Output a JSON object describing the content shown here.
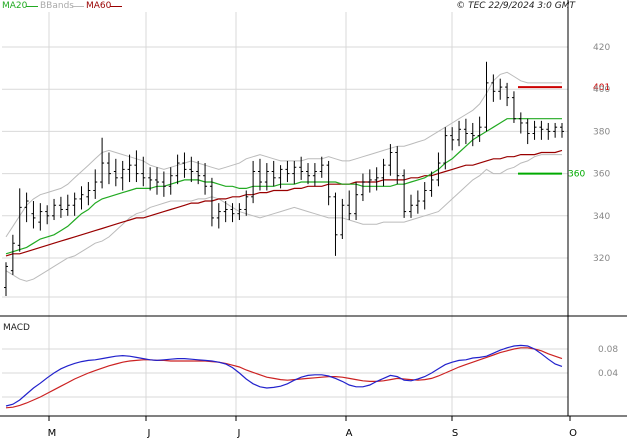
{
  "header": {
    "credit": "© TEC 22/9/2024 3:0 GMT"
  },
  "chart_data": [
    {
      "type": "line",
      "panel": "price",
      "legend": [
        {
          "name": "MA20",
          "color": "#22aa22"
        },
        {
          "name": "BBands",
          "color": "#bbbbbb"
        },
        {
          "name": "MA60",
          "color": "#990000"
        }
      ],
      "y_ticks": [
        320,
        340,
        360,
        380,
        400,
        420
      ],
      "ylim": [
        300,
        428
      ],
      "month_labels": [
        "M",
        "J",
        "J",
        "A",
        "S",
        "O"
      ],
      "levels": [
        {
          "value": 401,
          "label": "401",
          "color": "#cc0000"
        },
        {
          "value": 360,
          "label": "360",
          "color": "#00aa00"
        }
      ],
      "colors": {
        "ohlc": "#000000",
        "ma20": "#22aa22",
        "ma60": "#990000",
        "bbands": "#bbbbbb",
        "grid": "#d9d9d9"
      },
      "ohlc": [
        [
          306,
          318,
          302,
          316
        ],
        [
          314,
          331,
          312,
          327
        ],
        [
          326,
          353,
          323,
          344
        ],
        [
          344,
          351,
          337,
          347
        ],
        [
          341,
          347,
          334,
          339
        ],
        [
          337,
          346,
          333,
          342
        ],
        [
          342,
          345,
          336,
          340
        ],
        [
          340,
          348,
          338,
          345
        ],
        [
          345,
          349,
          339,
          343
        ],
        [
          343,
          350,
          340,
          345
        ],
        [
          345,
          351,
          340,
          348
        ],
        [
          348,
          354,
          343,
          350
        ],
        [
          349,
          356,
          345,
          352
        ],
        [
          352,
          362,
          348,
          356
        ],
        [
          356,
          377,
          353,
          365
        ],
        [
          365,
          370,
          355,
          360
        ],
        [
          361,
          367,
          354,
          358
        ],
        [
          358,
          366,
          352,
          362
        ],
        [
          362,
          369,
          356,
          364
        ],
        [
          364,
          371,
          356,
          360
        ],
        [
          360,
          368,
          354,
          358
        ],
        [
          358,
          363,
          352,
          357
        ],
        [
          357,
          363,
          350,
          356
        ],
        [
          356,
          361,
          349,
          354
        ],
        [
          354,
          363,
          350,
          359
        ],
        [
          359,
          369,
          355,
          365
        ],
        [
          365,
          370,
          358,
          362
        ],
        [
          362,
          368,
          356,
          361
        ],
        [
          361,
          366,
          355,
          359
        ],
        [
          359,
          365,
          350,
          354
        ],
        [
          354,
          358,
          335,
          339
        ],
        [
          339,
          346,
          334,
          342
        ],
        [
          342,
          347,
          337,
          343
        ],
        [
          343,
          346,
          337,
          341
        ],
        [
          341,
          346,
          338,
          343
        ],
        [
          343,
          352,
          340,
          349
        ],
        [
          349,
          366,
          346,
          361
        ],
        [
          361,
          367,
          352,
          356
        ],
        [
          356,
          365,
          352,
          361
        ],
        [
          361,
          366,
          354,
          358
        ],
        [
          358,
          364,
          353,
          362
        ],
        [
          362,
          366,
          356,
          360
        ],
        [
          360,
          366,
          355,
          363
        ],
        [
          363,
          368,
          357,
          361
        ],
        [
          361,
          365,
          355,
          359
        ],
        [
          359,
          365,
          354,
          361
        ],
        [
          361,
          368,
          358,
          364
        ],
        [
          364,
          366,
          345,
          349
        ],
        [
          349,
          351,
          321,
          331
        ],
        [
          331,
          348,
          329,
          345
        ],
        [
          345,
          352,
          338,
          341
        ],
        [
          341,
          356,
          338,
          350
        ],
        [
          350,
          360,
          347,
          356
        ],
        [
          356,
          362,
          351,
          357
        ],
        [
          357,
          363,
          352,
          358
        ],
        [
          358,
          367,
          354,
          364
        ],
        [
          364,
          374,
          359,
          370
        ],
        [
          370,
          373,
          355,
          359
        ],
        [
          359,
          362,
          339,
          342
        ],
        [
          342,
          350,
          339,
          345
        ],
        [
          345,
          352,
          341,
          347
        ],
        [
          347,
          356,
          343,
          352
        ],
        [
          352,
          361,
          349,
          357
        ],
        [
          357,
          370,
          354,
          365
        ],
        [
          365,
          382,
          362,
          378
        ],
        [
          378,
          382,
          371,
          376
        ],
        [
          376,
          385,
          373,
          381
        ],
        [
          381,
          386,
          374,
          379
        ],
        [
          379,
          384,
          373,
          378
        ],
        [
          378,
          387,
          375,
          382
        ],
        [
          382,
          413,
          380,
          403
        ],
        [
          403,
          407,
          394,
          399
        ],
        [
          399,
          405,
          395,
          401
        ],
        [
          401,
          403,
          392,
          396
        ],
        [
          396,
          399,
          384,
          386
        ],
        [
          386,
          389,
          379,
          384
        ],
        [
          384,
          386,
          374,
          379
        ],
        [
          379,
          385,
          376,
          382
        ],
        [
          382,
          385,
          376,
          381
        ],
        [
          381,
          384,
          376,
          380
        ],
        [
          380,
          384,
          377,
          382
        ],
        [
          382,
          384,
          377,
          380
        ]
      ],
      "ma20": [
        322,
        323,
        324,
        325,
        327,
        329,
        330,
        331,
        333,
        335,
        338,
        341,
        343,
        346,
        348,
        349,
        350,
        351,
        352,
        353,
        353,
        353,
        354,
        354,
        355,
        356,
        357,
        357,
        357,
        356,
        356,
        355,
        354,
        354,
        353,
        353,
        354,
        354,
        354,
        354,
        355,
        355,
        355,
        356,
        356,
        356,
        356,
        356,
        356,
        355,
        355,
        355,
        354,
        354,
        354,
        354,
        354,
        355,
        355,
        356,
        357,
        358,
        360,
        362,
        365,
        367,
        370,
        373,
        376,
        378,
        380,
        382,
        384,
        386,
        386,
        386,
        386,
        386,
        386,
        386,
        386,
        386
      ],
      "ma60": [
        321,
        322,
        322,
        323,
        324,
        325,
        326,
        327,
        328,
        329,
        330,
        331,
        332,
        333,
        334,
        335,
        336,
        337,
        338,
        339,
        339,
        340,
        341,
        342,
        343,
        344,
        345,
        346,
        346,
        347,
        347,
        348,
        348,
        349,
        349,
        350,
        350,
        351,
        351,
        352,
        352,
        352,
        353,
        353,
        354,
        354,
        354,
        355,
        355,
        355,
        355,
        356,
        356,
        356,
        356,
        357,
        357,
        357,
        357,
        358,
        358,
        359,
        359,
        360,
        361,
        362,
        363,
        364,
        364,
        365,
        366,
        367,
        367,
        368,
        368,
        369,
        369,
        369,
        370,
        370,
        370,
        371
      ],
      "bb_upper": [
        330,
        335,
        340,
        345,
        348,
        350,
        351,
        352,
        353,
        355,
        358,
        361,
        364,
        367,
        370,
        371,
        370,
        369,
        368,
        367,
        366,
        364,
        363,
        362,
        363,
        364,
        365,
        366,
        365,
        364,
        363,
        362,
        363,
        364,
        365,
        367,
        368,
        369,
        368,
        367,
        366,
        366,
        366,
        366,
        367,
        367,
        367,
        368,
        367,
        366,
        366,
        367,
        368,
        369,
        370,
        371,
        372,
        373,
        373,
        374,
        375,
        376,
        378,
        380,
        382,
        384,
        386,
        388,
        390,
        393,
        398,
        404,
        407,
        408,
        406,
        404,
        403,
        403,
        403,
        403,
        403,
        403
      ],
      "bb_lower": [
        314,
        312,
        310,
        309,
        310,
        312,
        314,
        316,
        318,
        320,
        321,
        323,
        325,
        327,
        328,
        330,
        333,
        336,
        339,
        341,
        342,
        344,
        345,
        346,
        347,
        347,
        347,
        347,
        348,
        348,
        349,
        348,
        346,
        344,
        342,
        341,
        340,
        339,
        340,
        341,
        342,
        343,
        344,
        343,
        342,
        341,
        340,
        339,
        339,
        339,
        338,
        337,
        336,
        336,
        336,
        337,
        337,
        337,
        337,
        338,
        339,
        340,
        341,
        342,
        345,
        348,
        351,
        354,
        357,
        359,
        362,
        360,
        360,
        362,
        363,
        365,
        366,
        368,
        369,
        369,
        369,
        369
      ]
    },
    {
      "type": "line",
      "panel": "macd",
      "title": "MACD",
      "y_ticks": [
        0.04,
        0.08
      ],
      "ylim": [
        -0.02,
        0.12
      ],
      "macd": [
        -0.015,
        -0.012,
        -0.005,
        0.005,
        0.015,
        0.023,
        0.032,
        0.04,
        0.047,
        0.052,
        0.056,
        0.059,
        0.061,
        0.062,
        0.064,
        0.066,
        0.068,
        0.069,
        0.068,
        0.066,
        0.064,
        0.062,
        0.061,
        0.062,
        0.063,
        0.064,
        0.064,
        0.063,
        0.062,
        0.061,
        0.06,
        0.058,
        0.055,
        0.049,
        0.04,
        0.03,
        0.022,
        0.017,
        0.015,
        0.016,
        0.018,
        0.022,
        0.028,
        0.033,
        0.036,
        0.037,
        0.037,
        0.035,
        0.031,
        0.026,
        0.02,
        0.017,
        0.017,
        0.02,
        0.026,
        0.031,
        0.036,
        0.034,
        0.028,
        0.027,
        0.03,
        0.034,
        0.04,
        0.047,
        0.054,
        0.058,
        0.061,
        0.062,
        0.065,
        0.066,
        0.068,
        0.073,
        0.078,
        0.082,
        0.085,
        0.086,
        0.085,
        0.08,
        0.072,
        0.063,
        0.055,
        0.051
      ],
      "signal": [
        -0.018,
        -0.017,
        -0.014,
        -0.01,
        -0.005,
        0.0,
        0.006,
        0.012,
        0.018,
        0.024,
        0.03,
        0.035,
        0.04,
        0.044,
        0.048,
        0.052,
        0.055,
        0.058,
        0.06,
        0.061,
        0.062,
        0.062,
        0.061,
        0.061,
        0.06,
        0.06,
        0.06,
        0.06,
        0.06,
        0.06,
        0.059,
        0.058,
        0.056,
        0.053,
        0.05,
        0.045,
        0.041,
        0.037,
        0.033,
        0.031,
        0.029,
        0.028,
        0.029,
        0.03,
        0.031,
        0.032,
        0.033,
        0.034,
        0.034,
        0.033,
        0.031,
        0.029,
        0.027,
        0.026,
        0.026,
        0.027,
        0.029,
        0.031,
        0.03,
        0.029,
        0.028,
        0.029,
        0.031,
        0.035,
        0.04,
        0.045,
        0.05,
        0.054,
        0.058,
        0.062,
        0.066,
        0.07,
        0.074,
        0.077,
        0.08,
        0.082,
        0.082,
        0.08,
        0.077,
        0.072,
        0.068,
        0.064
      ],
      "colors": {
        "macd": "#2222cc",
        "signal": "#cc2222",
        "grid": "#d9d9d9"
      }
    }
  ]
}
